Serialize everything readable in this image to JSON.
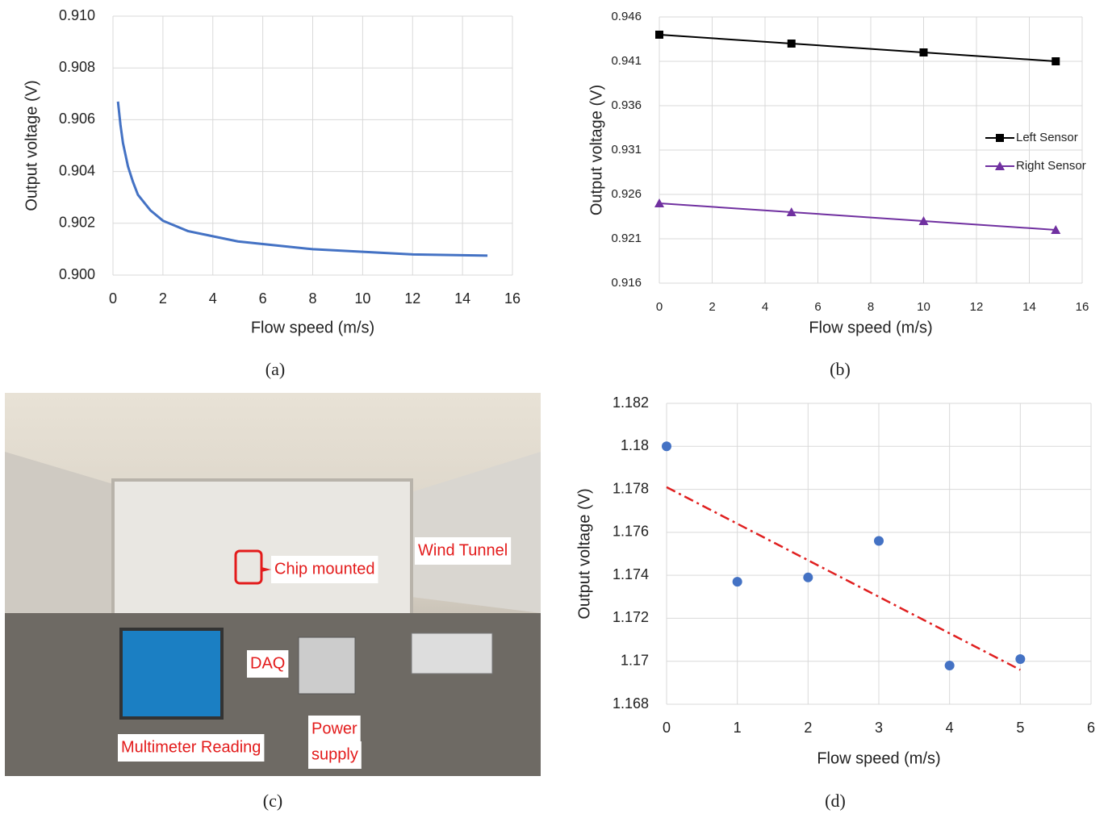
{
  "chart_data": [
    {
      "type": "line",
      "caption": "(a)",
      "x_label": "Flow speed (m/s)",
      "y_label": "Output voltage (V)",
      "x": [
        0.2,
        0.3,
        0.4,
        0.6,
        0.8,
        1,
        1.5,
        2,
        3,
        4,
        5,
        6,
        8,
        10,
        12,
        15
      ],
      "values": [
        0.9067,
        0.9058,
        0.9051,
        0.9042,
        0.9036,
        0.9031,
        0.9025,
        0.9021,
        0.9017,
        0.9015,
        0.9013,
        0.9012,
        0.901,
        0.9009,
        0.9008,
        0.90075
      ],
      "color": "#4472c4",
      "xlim": [
        0,
        16
      ],
      "xticks": [
        0,
        2,
        4,
        6,
        8,
        10,
        12,
        14,
        16
      ],
      "ylim": [
        0.9,
        0.91
      ],
      "yticks": [
        {
          "value": 0.9,
          "label": "0.900"
        },
        0.902,
        0.904,
        0.906,
        0.908,
        {
          "value": 0.91,
          "label": "0.910"
        }
      ],
      "grid": true
    },
    {
      "type": "line",
      "caption": "(b)",
      "x_label": "Flow speed (m/s)",
      "y_label": "Output voltage (V)",
      "x": [
        0,
        5,
        10,
        15
      ],
      "series": [
        {
          "name": "Left Sensor",
          "color": "#000000",
          "marker": "square",
          "values": [
            0.944,
            0.943,
            0.942,
            0.941
          ]
        },
        {
          "name": "Right Sensor",
          "color": "#7030a0",
          "marker": "triangle",
          "values": [
            0.925,
            0.924,
            0.923,
            0.922
          ]
        }
      ],
      "xlim": [
        0,
        16
      ],
      "xticks": [
        0,
        2,
        4,
        6,
        8,
        10,
        12,
        14,
        16
      ],
      "ylim": [
        0.916,
        0.946
      ],
      "yticks": [
        0.916,
        0.921,
        0.926,
        0.931,
        0.936,
        0.941,
        0.946
      ],
      "grid": true,
      "legend": "right"
    },
    {
      "type": "scatter",
      "caption": "(d)",
      "x_label": "Flow speed (m/s)",
      "y_label": "Output voltage (V)",
      "x": [
        0,
        1,
        2,
        3,
        4,
        5
      ],
      "values": [
        1.18,
        1.1737,
        1.1739,
        1.1756,
        1.1698,
        1.1701
      ],
      "color": "#4472c4",
      "trendline": {
        "x": [
          0,
          5
        ],
        "values": [
          1.1781,
          1.1696
        ],
        "color": "#e02020"
      },
      "xlim": [
        0,
        6
      ],
      "xticks": [
        0,
        1,
        2,
        3,
        4,
        5,
        6
      ],
      "ylim": [
        1.168,
        1.182
      ],
      "yticks": [
        1.168,
        1.17,
        1.172,
        1.174,
        1.176,
        1.178,
        1.18,
        1.182
      ],
      "grid": true
    }
  ],
  "photo": {
    "caption": "(c)",
    "labels": [
      "Chip mounted",
      "Wind Tunnel",
      "DAQ",
      "Power",
      "supply",
      "Multimeter Reading"
    ]
  }
}
